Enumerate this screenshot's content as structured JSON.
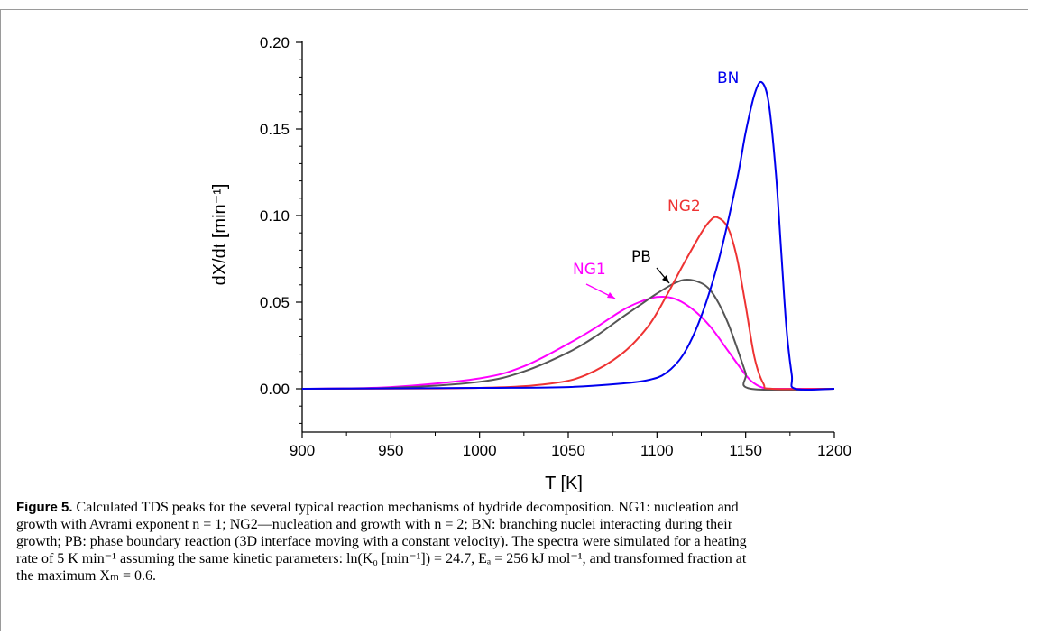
{
  "chart_data": {
    "type": "line",
    "xlabel": "T [K]",
    "ylabel": "dX/dt [min⁻¹]",
    "xlim": [
      900,
      1200
    ],
    "ylim": [
      -0.025,
      0.2
    ],
    "xticks": [
      900,
      950,
      1000,
      1050,
      1100,
      1150,
      1200
    ],
    "yticks": [
      0.0,
      0.05,
      0.1,
      0.15,
      0.2
    ],
    "ytick_labels": [
      "0.00",
      "0.05",
      "0.10",
      "0.15",
      "0.20"
    ],
    "grid": false,
    "series": [
      {
        "name": "NG1",
        "color": "#ff00ff",
        "x": [
          900,
          950,
          1000,
          1025,
          1050,
          1065,
          1080,
          1090,
          1100,
          1110,
          1120,
          1130,
          1140,
          1150,
          1155,
          1160,
          1165,
          1200
        ],
        "y": [
          0.0,
          0.001,
          0.006,
          0.013,
          0.026,
          0.035,
          0.045,
          0.05,
          0.053,
          0.052,
          0.046,
          0.036,
          0.022,
          0.008,
          0.003,
          0.0005,
          0.0,
          0.0
        ]
      },
      {
        "name": "PB",
        "color": "#555555",
        "x": [
          900,
          950,
          1000,
          1025,
          1050,
          1065,
          1080,
          1090,
          1100,
          1110,
          1117,
          1125,
          1130,
          1135,
          1140,
          1145,
          1150,
          1153,
          1200
        ],
        "y": [
          0.0,
          0.0005,
          0.004,
          0.01,
          0.021,
          0.03,
          0.041,
          0.048,
          0.055,
          0.061,
          0.063,
          0.061,
          0.057,
          0.049,
          0.038,
          0.024,
          0.009,
          0.0,
          0.0
        ]
      },
      {
        "name": "NG2",
        "color": "#ee3333",
        "x": [
          900,
          1000,
          1040,
          1060,
          1080,
          1095,
          1105,
          1115,
          1125,
          1130,
          1134,
          1140,
          1145,
          1150,
          1155,
          1160,
          1165,
          1200
        ],
        "y": [
          0.0,
          0.0005,
          0.003,
          0.008,
          0.02,
          0.036,
          0.053,
          0.072,
          0.09,
          0.097,
          0.099,
          0.093,
          0.076,
          0.048,
          0.018,
          0.003,
          0.0,
          0.0
        ]
      },
      {
        "name": "BN",
        "color": "#0000ee",
        "x": [
          900,
          1000,
          1050,
          1080,
          1095,
          1105,
          1115,
          1125,
          1135,
          1145,
          1150,
          1155,
          1159,
          1163,
          1167,
          1170,
          1173,
          1176,
          1178,
          1200
        ],
        "y": [
          0.0,
          0.0005,
          0.001,
          0.003,
          0.005,
          0.009,
          0.02,
          0.042,
          0.075,
          0.12,
          0.148,
          0.17,
          0.177,
          0.165,
          0.125,
          0.08,
          0.035,
          0.008,
          0.0,
          0.0
        ]
      }
    ]
  },
  "caption": {
    "figure_label": "Figure 5.",
    "lines": [
      "Calculated TDS peaks for the several typical reaction mechanisms of hydride decomposition. NG1: nucleation and",
      "growth with Avrami exponent n = 1; NG2—nucleation and growth with n = 2; BN: branching nuclei interacting during their",
      "growth; PB: phase boundary reaction (3D interface moving with a constant velocity). The spectra were simulated for a heating",
      "rate of 5 K min⁻¹ assuming the same kinetic parameters: ln(K₀ [min⁻¹]) = 24.7, Eₐ = 256 kJ mol⁻¹, and transformed fraction at",
      "the maximum Xₘ = 0.6."
    ]
  }
}
